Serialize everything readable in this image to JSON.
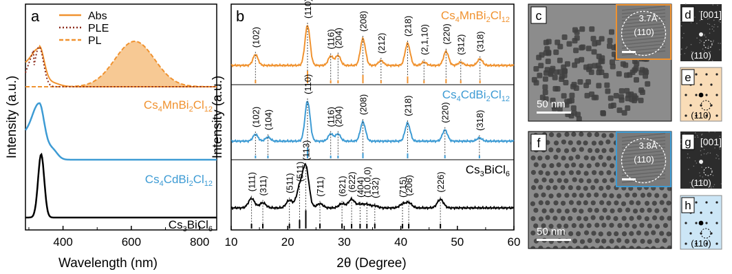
{
  "colors": {
    "mn": "#f0922f",
    "mn_fill": "#f7c994",
    "ple": "#8b2a1b",
    "cd": "#3d9bd4",
    "bi": "#000000",
    "tem_dark": "#3a3a3a",
    "pattern_mn_bg": "#f9dcb7",
    "pattern_cd_bg": "#cce6f6"
  },
  "panel_letters": {
    "a": "a",
    "b": "b",
    "c": "c",
    "d": "d",
    "e": "e",
    "f": "f",
    "g": "g",
    "h": "h"
  },
  "panel_a": {
    "legend": [
      "Abs",
      "PLE",
      "PL"
    ],
    "ylabel": "Intensity (a.u.)",
    "xlabel": "Wavelength (nm)",
    "xticks": [
      "400",
      "600",
      "800"
    ],
    "compounds": [
      {
        "base": "Cs",
        "sub1": "4",
        "m": "MnBi",
        "sub2": "2",
        "x": "Cl",
        "sub3": "12"
      },
      {
        "base": "Cs",
        "sub1": "4",
        "m": "CdBi",
        "sub2": "2",
        "x": "Cl",
        "sub3": "12"
      },
      {
        "base": "Cs",
        "sub1": "3",
        "m": "BiCl",
        "sub2": "6",
        "x": "",
        "sub3": ""
      }
    ]
  },
  "panel_b": {
    "ylabel": "Intensity (a.u.)",
    "xlabel": "2θ (Degree)",
    "xticks": [
      "10",
      "20",
      "30",
      "40",
      "50",
      "60"
    ],
    "compounds": [
      {
        "base": "Cs",
        "sub1": "4",
        "m": "MnBi",
        "sub2": "2",
        "x": "Cl",
        "sub3": "12"
      },
      {
        "base": "Cs",
        "sub1": "4",
        "m": "CdBi",
        "sub2": "2",
        "x": "Cl",
        "sub3": "12"
      },
      {
        "base": "Cs",
        "sub1": "3",
        "m": "BiCl",
        "sub2": "6",
        "x": "",
        "sub3": ""
      }
    ],
    "peaks_mn": [
      {
        "t": 14.3,
        "label": "(102)"
      },
      {
        "t": 23.5,
        "label": "(110)"
      },
      {
        "t": 27.6,
        "label": "(116)"
      },
      {
        "t": 28.9,
        "label": "(204)"
      },
      {
        "t": 33.3,
        "label": "(208)"
      },
      {
        "t": 36.5,
        "label": "(212)"
      },
      {
        "t": 41.2,
        "label": "(218)"
      },
      {
        "t": 44.1,
        "label": "(2,1,10)"
      },
      {
        "t": 48.0,
        "label": "(220)"
      },
      {
        "t": 50.6,
        "label": "(312)"
      },
      {
        "t": 54.0,
        "label": "(318)"
      }
    ],
    "peaks_cd": [
      {
        "t": 14.3,
        "label": "(102)"
      },
      {
        "t": 16.5,
        "label": "(104)"
      },
      {
        "t": 23.5,
        "label": "(110)"
      },
      {
        "t": 27.6,
        "label": "(116)"
      },
      {
        "t": 28.9,
        "label": "(204)"
      },
      {
        "t": 33.3,
        "label": "(208)"
      },
      {
        "t": 41.2,
        "label": "(218)"
      },
      {
        "t": 47.8,
        "label": "(220)"
      },
      {
        "t": 53.9,
        "label": "(318)"
      }
    ],
    "peaks_bi": [
      {
        "t": 13.6,
        "label": "(111)"
      },
      {
        "t": 15.6,
        "label": "(311)"
      },
      {
        "t": 20.3,
        "label": "(511)"
      },
      {
        "t": 22.1,
        "label": "(511)"
      },
      {
        "t": 23.2,
        "label": "(113)"
      },
      {
        "t": 25.7,
        "label": "(711)"
      },
      {
        "t": 29.6,
        "label": "(621)"
      },
      {
        "t": 31.3,
        "label": "(622)"
      },
      {
        "t": 32.8,
        "label": "(404)"
      },
      {
        "t": 34.0,
        "label": "(10,0,0)"
      },
      {
        "t": 35.4,
        "label": "(132)"
      },
      {
        "t": 40.3,
        "label": "(715)"
      },
      {
        "t": 41.4,
        "label": "(206)"
      },
      {
        "t": 47.0,
        "label": "(226)"
      }
    ]
  },
  "tem": {
    "c_scale": "50 nm",
    "f_scale": "50 nm",
    "c_inset_d": "3.7Å",
    "c_inset_hkl": "(110)",
    "f_inset_d": "3.8Å",
    "f_inset_hkl": "(110)",
    "fft_zone": "[001]",
    "fft_hkl": "(110)",
    "pattern_hkl": "(110)"
  }
}
